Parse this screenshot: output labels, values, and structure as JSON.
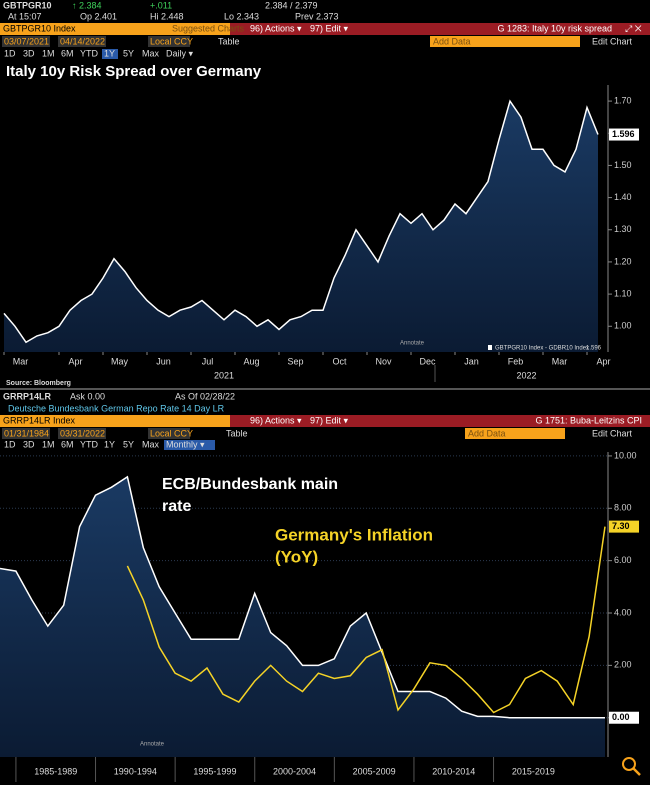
{
  "top_panel": {
    "ticker": "GBTPGR10",
    "last": "↑ 2.384",
    "change": "+.011",
    "bid_ask": "2.384 / 2.379",
    "time": "At 15:07",
    "open": "Op 2.401",
    "high": "Hi 2.448",
    "low": "Lo 2.343",
    "prev": "Prev 2.373",
    "index": "GBTPGR10 Index",
    "suggested": "Suggested Charts",
    "actions": "96) Actions ▾",
    "edit": "97) Edit ▾",
    "graph": "G 1283: Italy 10y risk spread",
    "start_date": "03/07/2021",
    "end_date": "04/14/2022",
    "currency": "Local CCY",
    "table": "Table",
    "add_data": "Add Data",
    "edit_chart": "Edit Chart",
    "periods": [
      "1D",
      "3D",
      "1M",
      "6M",
      "YTD",
      "1Y",
      "5Y",
      "Max",
      "Daily ▾"
    ],
    "source": "Source: Bloomberg"
  },
  "bottom_panel": {
    "ticker": "GRRP14LR",
    "ask": "Ask 0.00",
    "as_of": "As Of 02/28/22",
    "description": "Deutsche Bundesbank German Repo Rate 14 Day LR",
    "index": "GRRP14LR Index",
    "actions": "96) Actions ▾",
    "edit": "97) Edit ▾",
    "graph": "G 1751: Buba-Leitzins CPI",
    "start_date": "01/31/1984",
    "end_date": "03/31/2022",
    "currency": "Local CCY",
    "table": "Table",
    "add_data": "Add Data",
    "edit_chart": "Edit Chart",
    "periods": [
      "1D",
      "3D",
      "1M",
      "6M",
      "YTD",
      "1Y",
      "5Y",
      "Max",
      "Monthly ▾"
    ]
  },
  "chart_data": [
    {
      "type": "line",
      "title": "Italy 10y Risk Spread over Germany",
      "annotate": "Annotate",
      "x": [
        "2021-03",
        "2021-03",
        "2021-03",
        "2021-03",
        "2021-03",
        "2021-04",
        "2021-04",
        "2021-04",
        "2021-04",
        "2021-05",
        "2021-05",
        "2021-05",
        "2021-05",
        "2021-06",
        "2021-06",
        "2021-06",
        "2021-06",
        "2021-07",
        "2021-07",
        "2021-07",
        "2021-07",
        "2021-08",
        "2021-08",
        "2021-08",
        "2021-08",
        "2021-09",
        "2021-09",
        "2021-09",
        "2021-09",
        "2021-10",
        "2021-10",
        "2021-10",
        "2021-10",
        "2021-11",
        "2021-11",
        "2021-11",
        "2021-11",
        "2021-12",
        "2021-12",
        "2021-12",
        "2021-12",
        "2022-01",
        "2022-01",
        "2022-01",
        "2022-01",
        "2022-02",
        "2022-02",
        "2022-02",
        "2022-02",
        "2022-03",
        "2022-03",
        "2022-03",
        "2022-03",
        "2022-04",
        "2022-04"
      ],
      "series": [
        {
          "name": "GBTPGR10 Index - GDBR10 Index",
          "color": "#ffffff",
          "values": [
            1.04,
            1.0,
            0.95,
            0.97,
            0.98,
            1.0,
            1.05,
            1.08,
            1.1,
            1.15,
            1.21,
            1.17,
            1.12,
            1.08,
            1.05,
            1.03,
            1.05,
            1.06,
            1.08,
            1.05,
            1.02,
            1.05,
            1.03,
            1.0,
            1.02,
            0.99,
            1.02,
            1.03,
            1.05,
            1.05,
            1.15,
            1.22,
            1.3,
            1.25,
            1.2,
            1.28,
            1.35,
            1.32,
            1.35,
            1.3,
            1.33,
            1.38,
            1.35,
            1.4,
            1.45,
            1.58,
            1.7,
            1.65,
            1.55,
            1.55,
            1.5,
            1.48,
            1.55,
            1.68,
            1.596
          ]
        }
      ],
      "ylim": [
        0.92,
        1.75
      ],
      "yticks": [
        {
          "value": 1,
          "label": "1.00"
        },
        {
          "value": 1.1,
          "label": "1.10"
        },
        {
          "value": 1.2,
          "label": "1.20"
        },
        {
          "value": 1.3,
          "label": "1.30"
        },
        {
          "value": 1.4,
          "label": "1.40"
        },
        {
          "value": 1.5,
          "label": "1.50"
        },
        {
          "value": 1.6,
          "label": "1.60"
        },
        {
          "value": 1.7,
          "label": "1.70"
        }
      ],
      "xticks": [
        {
          "value": "2021-03",
          "label": "Mar"
        },
        {
          "value": "2021-04",
          "label": "Apr"
        },
        {
          "value": "2021-05",
          "label": "May"
        },
        {
          "value": "2021-06",
          "label": "Jun"
        },
        {
          "value": "2021-07",
          "label": "Jul"
        },
        {
          "value": "2021-08",
          "label": "Aug"
        },
        {
          "value": "2021-09",
          "label": "Sep"
        },
        {
          "value": "2021-10",
          "label": "Oct"
        },
        {
          "value": "2021-11",
          "label": "Nov"
        },
        {
          "value": "2021-12",
          "label": "Dec"
        },
        {
          "value": "2022-01",
          "label": "Jan"
        },
        {
          "value": "2022-02",
          "label": "Feb"
        },
        {
          "value": "2022-03",
          "label": "Mar"
        },
        {
          "value": "2022-04",
          "label": "Apr"
        }
      ],
      "years": [
        "2021",
        "2022"
      ],
      "grid": false
    },
    {
      "type": "line",
      "annotate": "Annotate",
      "annotations": [
        {
          "lines": [
            "ECB/Bundesbank main",
            "rate"
          ],
          "color": "#ffffff"
        },
        {
          "lines": [
            "Germany's Inflation",
            "(YoY)"
          ],
          "color": "#f5d327"
        }
      ],
      "x": [
        "1984",
        "1985",
        "1986",
        "1987",
        "1988",
        "1989",
        "1990",
        "1991",
        "1992",
        "1993",
        "1994",
        "1995",
        "1996",
        "1997",
        "1998",
        "1999",
        "2000",
        "2001",
        "2002",
        "2003",
        "2004",
        "2005",
        "2006",
        "2007",
        "2008",
        "2009",
        "2010",
        "2011",
        "2012",
        "2013",
        "2014",
        "2015",
        "2016",
        "2017",
        "2018",
        "2019",
        "2020",
        "2021",
        "2022"
      ],
      "series": [
        {
          "color": "#ffffff",
          "area": true,
          "values": [
            5.7,
            5.6,
            4.5,
            3.5,
            4.3,
            7.3,
            8.5,
            8.8,
            9.2,
            6.5,
            5.0,
            4.0,
            3.0,
            3.0,
            3.0,
            3.0,
            4.75,
            3.25,
            2.75,
            2.0,
            2.0,
            2.25,
            3.5,
            4.0,
            2.5,
            1.0,
            1.0,
            1.0,
            0.75,
            0.25,
            0.05,
            0.05,
            0,
            0,
            0,
            0,
            0,
            0,
            0
          ],
          "value_labels": [
            null,
            null,
            null,
            null,
            null,
            null,
            null,
            null,
            null,
            null,
            null,
            null,
            null,
            null,
            null,
            null,
            null,
            null,
            null,
            null,
            null,
            null,
            null,
            null,
            null,
            null,
            null,
            null,
            null,
            null,
            null,
            null,
            null,
            null,
            null,
            null,
            null,
            null,
            "0.00"
          ]
        },
        {
          "color": "#f5d327",
          "values": [
            null,
            null,
            null,
            null,
            null,
            null,
            null,
            null,
            5.8,
            4.5,
            2.7,
            1.7,
            1.4,
            1.9,
            0.9,
            0.6,
            1.4,
            2.0,
            1.4,
            1.0,
            1.7,
            1.5,
            1.6,
            2.3,
            2.6,
            0.3,
            1.1,
            2.1,
            2.0,
            1.5,
            0.9,
            0.2,
            0.5,
            1.5,
            1.8,
            1.4,
            0.5,
            3.1,
            7.3
          ],
          "value_labels": [
            null,
            null,
            null,
            null,
            null,
            null,
            null,
            null,
            null,
            null,
            null,
            null,
            null,
            null,
            null,
            null,
            null,
            null,
            null,
            null,
            null,
            null,
            null,
            null,
            null,
            null,
            null,
            null,
            null,
            null,
            null,
            null,
            null,
            null,
            null,
            null,
            null,
            null,
            "7.30"
          ]
        }
      ],
      "ylim": [
        -1.5,
        10.15
      ],
      "yticks": [
        {
          "value": 0,
          "label": "0.00"
        },
        {
          "value": 2,
          "label": "2.00"
        },
        {
          "value": 4,
          "label": "4.00"
        },
        {
          "value": 6,
          "label": "6.00"
        },
        {
          "value": 8,
          "label": "8.00"
        },
        {
          "value": 10,
          "label": "10.00"
        }
      ],
      "xticks": [
        {
          "value": "1985",
          "label": "1985-1989"
        },
        {
          "value": "1990",
          "label": "1990-1994"
        },
        {
          "value": "1995",
          "label": "1995-1999"
        },
        {
          "value": "2000",
          "label": "2000-2004"
        },
        {
          "value": "2005",
          "label": "2005-2009"
        },
        {
          "value": "2010",
          "label": "2010-2014"
        },
        {
          "value": "2015",
          "label": "2015-2019"
        }
      ],
      "grid": true
    }
  ]
}
